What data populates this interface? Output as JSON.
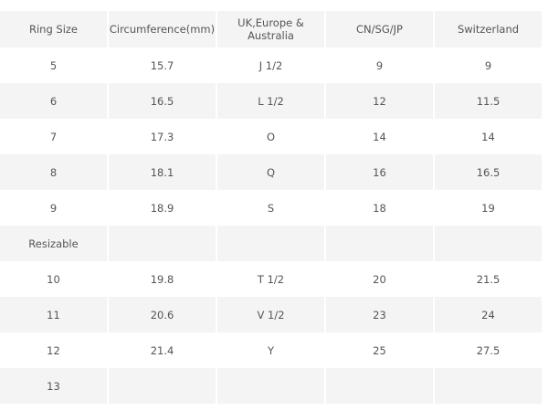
{
  "headers": [
    "Ring Size",
    "Circumference(mm)",
    "UK,Europe & Australia",
    "CN/SG/JP",
    "Switzerland"
  ],
  "rows": [
    [
      "5",
      "15.7",
      "J 1/2",
      "9",
      "9"
    ],
    [
      "6",
      "16.5",
      "L 1/2",
      "12",
      "11.5"
    ],
    [
      "7",
      "17.3",
      "O",
      "14",
      "14"
    ],
    [
      "8",
      "18.1",
      "Q",
      "16",
      "16.5"
    ],
    [
      "9",
      "18.9",
      "S",
      "18",
      "19"
    ],
    [
      "Resizable",
      "",
      "",
      "",
      ""
    ],
    [
      "10",
      "19.8",
      "T 1/2",
      "20",
      "21.5"
    ],
    [
      "11",
      "20.6",
      "V 1/2",
      "23",
      "24"
    ],
    [
      "12",
      "21.4",
      "Y",
      "25",
      "27.5"
    ],
    [
      "13",
      "",
      "",
      "",
      ""
    ]
  ]
}
